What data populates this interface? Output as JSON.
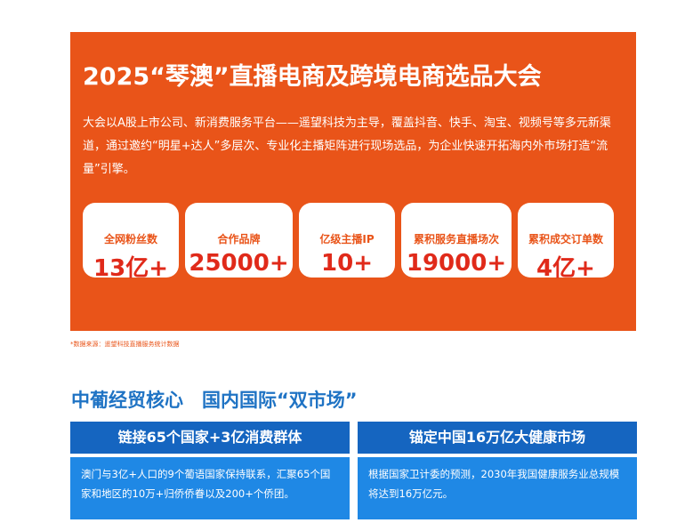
{
  "banner": {
    "title": "2025“琴澳”直播电商及跨境电商选品大会",
    "description": "大会以A股上市公司、新消费服务平台——遥望科技为主导，覆盖抖音、快手、淘宝、视频号等多元新渠道，通过邀约“明星+达人”多层次、专业化主播矩阵进行现场选品，为企业快速开拓海内外市场打造“流量”引擎。",
    "stats": [
      {
        "label": "全网粉丝数",
        "value": "13亿+"
      },
      {
        "label": "合作品牌",
        "value": "25000+"
      },
      {
        "label": "亿级主播IP",
        "value": "10+"
      },
      {
        "label": "累积服务直播场次",
        "value": "19000+"
      },
      {
        "label": "累积成交订单数",
        "value": "4亿+"
      }
    ]
  },
  "source_note": "*数据来源：遥望科技直播服务统计数据",
  "section": {
    "title": "中葡经贸核心　国内国际“双市场”",
    "cards": [
      {
        "heading": "链接65个国家+3亿消费群体",
        "body": "澳门与3亿+人口的9个葡语国家保持联系，汇聚65个国家和地区的10万+归侨侨眷以及200+个侨团。"
      },
      {
        "heading": "锚定中国16万亿大健康市场",
        "body": "根据国家卫计委的预测，2030年我国健康服务业总规模将达到16万亿元。"
      }
    ]
  }
}
